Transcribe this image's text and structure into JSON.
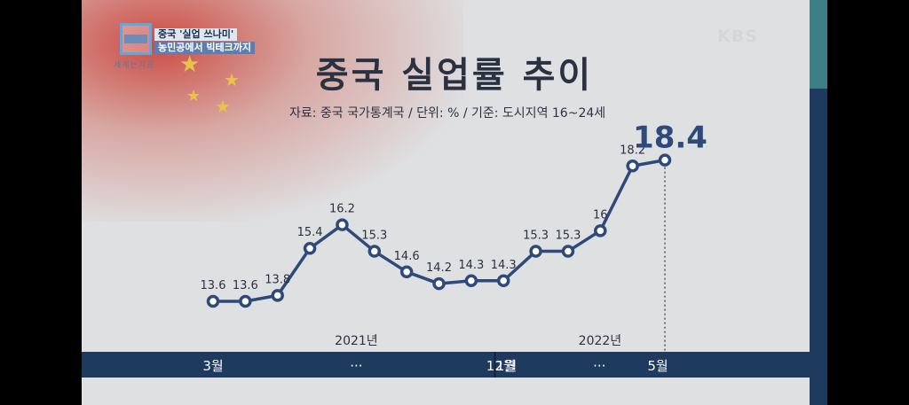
{
  "broadcaster": "KBS",
  "program": {
    "logo_caption": "세계는지금",
    "topic_line1": "중국 '실업 쓰나미'",
    "topic_line2": "농민공에서 빅테크까지"
  },
  "title": "중국 실업률 추이",
  "source_note": "자료: 중국 국가통계국  /  단위: %  / 기준: 도시지역 16~24세",
  "colors": {
    "line": "#2d4a7a",
    "axis_band": "#1f3a5f",
    "background": "#dfe0e2"
  },
  "chart_data": {
    "type": "line",
    "title": "중국 실업률 추이",
    "unit": "%",
    "x": [
      "2021-03",
      "2021-04",
      "2021-05",
      "2021-06",
      "2021-07",
      "2021-08",
      "2021-09",
      "2021-10",
      "2021-11",
      "2021-12",
      "2022-01",
      "2022-02",
      "2022-03",
      "2022-04",
      "2022-05"
    ],
    "series": [
      {
        "values": [
          13.6,
          13.6,
          13.8,
          15.4,
          16.2,
          15.3,
          14.6,
          14.2,
          14.3,
          14.3,
          15.3,
          15.3,
          16,
          18.2,
          18.4
        ]
      }
    ],
    "data_labels": [
      "13.6",
      "13.6",
      "13.8",
      "15.4",
      "16.2",
      "15.3",
      "14.6",
      "14.2",
      "14.3",
      "14.3",
      "15.3",
      "15.3",
      "16",
      "18.2",
      "18.4"
    ],
    "year_labels": [
      "2021년",
      "2022년"
    ],
    "tick_labels": [
      "3월",
      "···",
      "12월",
      "1월",
      "···",
      "5월"
    ],
    "highlight_last": true
  }
}
